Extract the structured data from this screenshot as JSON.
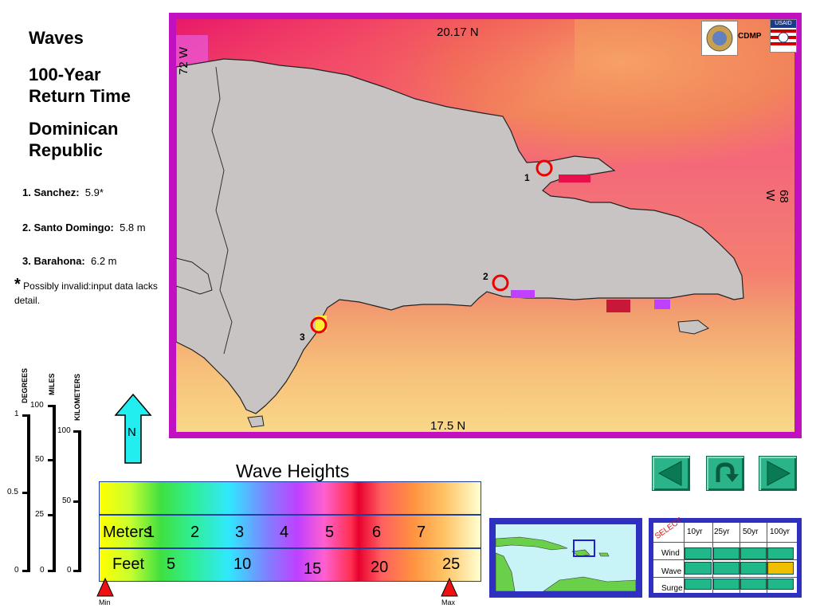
{
  "sidebar": {
    "title": "Waves",
    "subtitle": "100-Year Return Time",
    "region": "Dominican Republic",
    "sites": [
      {
        "num": "1.",
        "name": "Sanchez:",
        "value": "5.9*"
      },
      {
        "num": "2.",
        "name": "Santo Domingo:",
        "value": "5.8 m"
      },
      {
        "num": "3.",
        "name": "Barahona:",
        "value": "6.2 m"
      }
    ],
    "footnote_mark": "*",
    "footnote": "Possibly invalid:input data lacks detail."
  },
  "map": {
    "lat_top": "20.17 N",
    "lat_bottom": "17.5 N",
    "lon_left": "72 W",
    "lon_right": "68 W",
    "logo_label": "CDMP",
    "usaid_label": "USAID",
    "markers": [
      "1",
      "2",
      "3"
    ]
  },
  "scale_bars": {
    "degrees_label": "DEGREES",
    "miles_label": "MILES",
    "km_label": "KILOMETERS",
    "degrees": [
      "1",
      "0.5",
      "0"
    ],
    "miles": [
      "100",
      "50",
      "25",
      "0"
    ],
    "km": [
      "100",
      "50",
      "0"
    ]
  },
  "north_arrow": {
    "label": "N"
  },
  "legend": {
    "title": "Wave Heights",
    "meters_label": "Meters",
    "meters_ticks": [
      "1",
      "2",
      "3",
      "4",
      "5",
      "6",
      "7"
    ],
    "feet_label": "Feet",
    "feet_ticks": [
      "5",
      "10",
      "15",
      "20",
      "25"
    ],
    "min_label": "Min",
    "max_label": "Max"
  },
  "selector": {
    "select_label": "SELECT",
    "columns": [
      "10yr",
      "25yr",
      "50yr",
      "100yr"
    ],
    "rows": [
      "Wind",
      "Wave",
      "Surge"
    ],
    "selected": {
      "row": "Wave",
      "column": "100yr"
    }
  },
  "colors": {
    "frame": "#c010c0",
    "selector_frame": "#3030c0",
    "selected_cell": "#f0c000",
    "cell": "#20b888",
    "land": "#c8c4c4"
  }
}
